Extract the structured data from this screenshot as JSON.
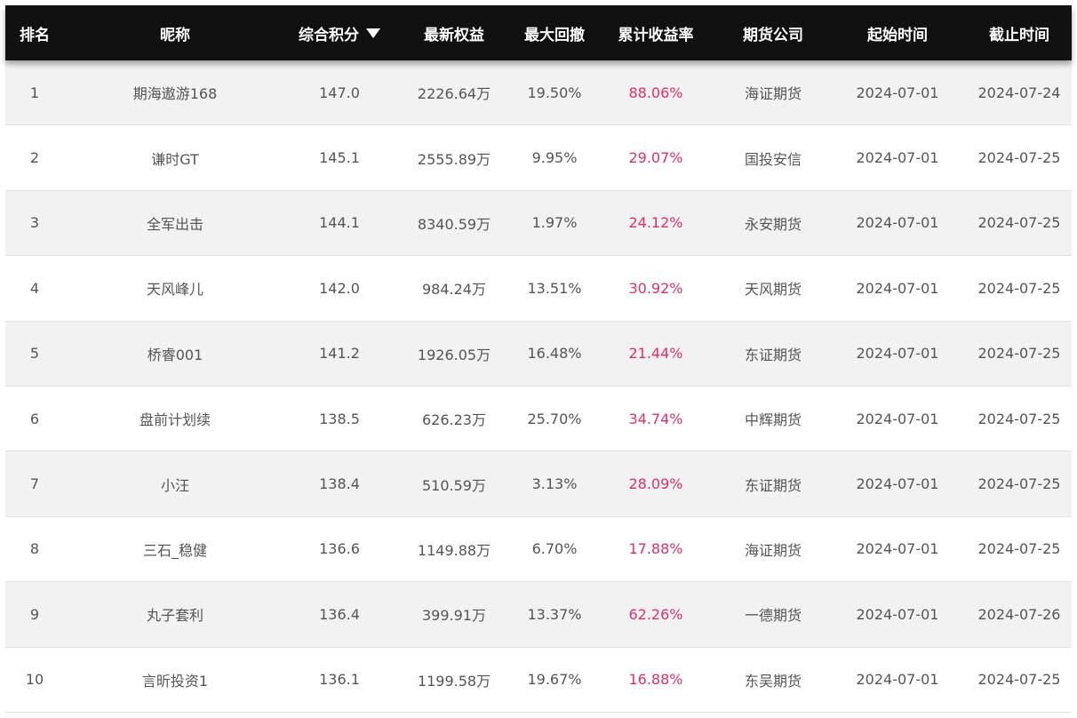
{
  "table": {
    "headers": {
      "rank": "排名",
      "name": "昵称",
      "score": "综合积分",
      "equity": "最新权益",
      "drawdown": "最大回撤",
      "return": "累计收益率",
      "company": "期货公司",
      "start": "起始时间",
      "end": "截止时间"
    },
    "sort_column": "score",
    "sort_direction": "descending",
    "colors": {
      "header_bg": "#111111",
      "return_text": "#e0306a",
      "row_alt": "#f2f2f2"
    },
    "rows": [
      {
        "rank": "1",
        "name": "期海遨游168",
        "score": "147.0",
        "equity": "2226.64万",
        "drawdown": "19.50%",
        "return": "88.06%",
        "company": "海证期货",
        "start": "2024-07-01",
        "end": "2024-07-24"
      },
      {
        "rank": "2",
        "name": "谦时GT",
        "score": "145.1",
        "equity": "2555.89万",
        "drawdown": "9.95%",
        "return": "29.07%",
        "company": "国投安信",
        "start": "2024-07-01",
        "end": "2024-07-25"
      },
      {
        "rank": "3",
        "name": "全军出击",
        "score": "144.1",
        "equity": "8340.59万",
        "drawdown": "1.97%",
        "return": "24.12%",
        "company": "永安期货",
        "start": "2024-07-01",
        "end": "2024-07-25"
      },
      {
        "rank": "4",
        "name": "天风峰儿",
        "score": "142.0",
        "equity": "984.24万",
        "drawdown": "13.51%",
        "return": "30.92%",
        "company": "天风期货",
        "start": "2024-07-01",
        "end": "2024-07-25"
      },
      {
        "rank": "5",
        "name": "桥睿001",
        "score": "141.2",
        "equity": "1926.05万",
        "drawdown": "16.48%",
        "return": "21.44%",
        "company": "东证期货",
        "start": "2024-07-01",
        "end": "2024-07-25"
      },
      {
        "rank": "6",
        "name": "盘前计划续",
        "score": "138.5",
        "equity": "626.23万",
        "drawdown": "25.70%",
        "return": "34.74%",
        "company": "中辉期货",
        "start": "2024-07-01",
        "end": "2024-07-25"
      },
      {
        "rank": "7",
        "name": "小汪",
        "score": "138.4",
        "equity": "510.59万",
        "drawdown": "3.13%",
        "return": "28.09%",
        "company": "东证期货",
        "start": "2024-07-01",
        "end": "2024-07-25"
      },
      {
        "rank": "8",
        "name": "三石_稳健",
        "score": "136.6",
        "equity": "1149.88万",
        "drawdown": "6.70%",
        "return": "17.88%",
        "company": "海证期货",
        "start": "2024-07-01",
        "end": "2024-07-25"
      },
      {
        "rank": "9",
        "name": "丸子套利",
        "score": "136.4",
        "equity": "399.91万",
        "drawdown": "13.37%",
        "return": "62.26%",
        "company": "一德期货",
        "start": "2024-07-01",
        "end": "2024-07-26"
      },
      {
        "rank": "10",
        "name": "言昕投资1",
        "score": "136.1",
        "equity": "1199.58万",
        "drawdown": "19.67%",
        "return": "16.88%",
        "company": "东吴期货",
        "start": "2024-07-01",
        "end": "2024-07-25"
      }
    ]
  }
}
